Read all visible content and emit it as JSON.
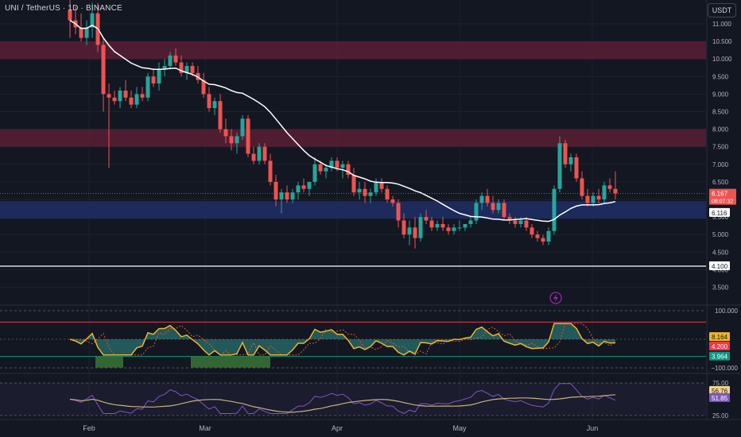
{
  "header": {
    "symbol_title": "UNI / TetherUS · 1D · BINANCE",
    "currency_button": "USDT"
  },
  "colors": {
    "background": "#131722",
    "candle_up": "#26a69a",
    "candle_down": "#ef5350",
    "ma_line": "#ffffff",
    "resistance_zone": "#5a1f35",
    "support_zone": "#1e2c63",
    "osc_fast": "#f0b429",
    "osc_slow": "#e0572b",
    "osc_fill": "#3fd4c4",
    "rsi_line": "#7e57c2",
    "rsi_ma": "#c8b27a",
    "upper_band": "#f23645",
    "lower_band": "#089981"
  },
  "price_axis": {
    "ticks": [
      "11.000",
      "10.500",
      "10.000",
      "9.500",
      "9.000",
      "8.500",
      "8.000",
      "7.500",
      "7.000",
      "6.500",
      "6.000",
      "5.500",
      "5.000",
      "4.500",
      "4.000",
      "3.500"
    ],
    "current_price_label": "6.167",
    "countdown_label": "08:07:32",
    "ma_label": "6.116",
    "hline_label": "4.100"
  },
  "osc_axis": {
    "ticks": [
      "100.000",
      "−100.000"
    ],
    "labels": [
      "8.164",
      "4.200",
      "3.964"
    ]
  },
  "rsi_axis": {
    "ticks": [
      "75.00",
      "25.00"
    ],
    "labels": [
      "56.76",
      "51.85"
    ]
  },
  "time_axis": {
    "labels": [
      "Feb",
      "Mar",
      "Apr",
      "May",
      "Jun"
    ]
  },
  "chart_data": {
    "type": "candlestick",
    "title": "UNI / TetherUS · 1D · BINANCE",
    "ylim": [
      3.2,
      11.35
    ],
    "resistance_zones": [
      [
        10.0,
        10.5
      ],
      [
        7.5,
        8.0
      ]
    ],
    "support_zone": [
      5.45,
      5.95
    ],
    "horizontal_line": 4.1,
    "moving_average_last": 6.116,
    "last_price": 6.167,
    "candles": [
      [
        11.4,
        11.8,
        10.6,
        11.1
      ],
      [
        11.1,
        11.5,
        10.7,
        10.9
      ],
      [
        10.9,
        11.3,
        10.5,
        10.6
      ],
      [
        10.6,
        11.1,
        10.4,
        10.9
      ],
      [
        10.9,
        11.6,
        10.6,
        11.3
      ],
      [
        11.3,
        11.6,
        10.2,
        10.4
      ],
      [
        10.4,
        10.6,
        8.5,
        9.0
      ],
      [
        9.0,
        9.3,
        6.9,
        8.9
      ],
      [
        8.9,
        9.1,
        8.7,
        8.8
      ],
      [
        8.8,
        9.2,
        8.6,
        9.1
      ],
      [
        9.1,
        9.4,
        8.8,
        8.9
      ],
      [
        8.9,
        9.1,
        8.6,
        8.7
      ],
      [
        8.7,
        9.2,
        8.6,
        9.0
      ],
      [
        9.0,
        9.2,
        8.8,
        8.9
      ],
      [
        8.9,
        9.6,
        8.8,
        9.5
      ],
      [
        9.5,
        9.7,
        9.2,
        9.3
      ],
      [
        9.3,
        9.9,
        9.1,
        9.7
      ],
      [
        9.7,
        10.0,
        9.5,
        9.8
      ],
      [
        9.8,
        10.2,
        9.7,
        10.1
      ],
      [
        10.1,
        10.3,
        9.8,
        9.9
      ],
      [
        9.9,
        10.1,
        9.5,
        9.6
      ],
      [
        9.6,
        9.9,
        9.4,
        9.8
      ],
      [
        9.8,
        9.9,
        9.5,
        9.6
      ],
      [
        9.6,
        9.8,
        9.3,
        9.4
      ],
      [
        9.4,
        9.6,
        8.9,
        9.0
      ],
      [
        9.0,
        9.2,
        8.5,
        8.6
      ],
      [
        8.6,
        8.9,
        8.4,
        8.8
      ],
      [
        8.8,
        9.0,
        7.9,
        8.0
      ],
      [
        8.0,
        8.3,
        7.6,
        7.8
      ],
      [
        7.8,
        8.0,
        7.4,
        7.6
      ],
      [
        7.6,
        7.9,
        7.3,
        7.8
      ],
      [
        7.8,
        8.4,
        7.7,
        8.3
      ],
      [
        8.3,
        8.4,
        7.2,
        7.3
      ],
      [
        7.3,
        7.5,
        7.0,
        7.1
      ],
      [
        7.1,
        7.6,
        7.0,
        7.5
      ],
      [
        7.5,
        7.6,
        7.0,
        7.1
      ],
      [
        7.1,
        7.3,
        6.4,
        6.5
      ],
      [
        6.5,
        6.7,
        5.8,
        6.0
      ],
      [
        6.0,
        6.3,
        5.6,
        6.2
      ],
      [
        6.2,
        6.4,
        5.9,
        6.0
      ],
      [
        6.0,
        6.3,
        5.9,
        6.2
      ],
      [
        6.2,
        6.5,
        6.0,
        6.4
      ],
      [
        6.4,
        6.6,
        6.2,
        6.3
      ],
      [
        6.3,
        6.5,
        6.1,
        6.5
      ],
      [
        6.5,
        7.2,
        6.4,
        7.0
      ],
      [
        7.0,
        7.1,
        6.7,
        6.8
      ],
      [
        6.8,
        7.0,
        6.6,
        6.9
      ],
      [
        6.9,
        7.2,
        6.8,
        7.1
      ],
      [
        7.1,
        7.2,
        6.8,
        6.9
      ],
      [
        6.9,
        7.1,
        6.6,
        7.0
      ],
      [
        7.0,
        7.1,
        6.6,
        6.7
      ],
      [
        6.7,
        6.9,
        6.1,
        6.2
      ],
      [
        6.2,
        6.5,
        6.0,
        6.3
      ],
      [
        6.3,
        6.5,
        5.9,
        6.1
      ],
      [
        6.1,
        6.3,
        5.9,
        6.2
      ],
      [
        6.2,
        6.6,
        6.1,
        6.5
      ],
      [
        6.5,
        6.6,
        6.2,
        6.3
      ],
      [
        6.3,
        6.4,
        5.9,
        6.0
      ],
      [
        6.0,
        6.1,
        5.8,
        5.9
      ],
      [
        5.9,
        6.0,
        5.2,
        5.4
      ],
      [
        5.4,
        5.6,
        4.9,
        5.0
      ],
      [
        5.0,
        5.4,
        4.7,
        5.2
      ],
      [
        5.2,
        5.5,
        4.6,
        4.9
      ],
      [
        4.9,
        5.6,
        4.8,
        5.5
      ],
      [
        5.5,
        5.7,
        5.3,
        5.4
      ],
      [
        5.4,
        5.5,
        5.1,
        5.2
      ],
      [
        5.2,
        5.4,
        5.1,
        5.3
      ],
      [
        5.3,
        5.5,
        5.1,
        5.2
      ],
      [
        5.2,
        5.3,
        5.0,
        5.1
      ],
      [
        5.1,
        5.3,
        5.0,
        5.2
      ],
      [
        5.2,
        5.4,
        5.1,
        5.2
      ],
      [
        5.2,
        5.3,
        5.1,
        5.3
      ],
      [
        5.3,
        5.5,
        5.2,
        5.4
      ],
      [
        5.4,
        6.0,
        5.3,
        5.9
      ],
      [
        5.9,
        6.2,
        5.7,
        6.1
      ],
      [
        6.1,
        6.3,
        5.8,
        5.9
      ],
      [
        5.9,
        6.1,
        5.6,
        5.7
      ],
      [
        5.7,
        6.0,
        5.6,
        5.9
      ],
      [
        5.9,
        6.0,
        5.4,
        5.5
      ],
      [
        5.5,
        5.6,
        5.3,
        5.4
      ],
      [
        5.4,
        5.5,
        5.2,
        5.3
      ],
      [
        5.3,
        5.5,
        5.2,
        5.4
      ],
      [
        5.4,
        5.5,
        5.1,
        5.2
      ],
      [
        5.2,
        5.3,
        4.9,
        5.0
      ],
      [
        5.0,
        5.1,
        4.8,
        4.9
      ],
      [
        4.9,
        5.0,
        4.7,
        4.8
      ],
      [
        4.8,
        5.2,
        4.7,
        5.1
      ],
      [
        5.1,
        6.4,
        5.0,
        6.3
      ],
      [
        6.3,
        7.8,
        6.2,
        7.6
      ],
      [
        7.6,
        7.7,
        6.9,
        7.0
      ],
      [
        7.0,
        7.3,
        6.8,
        7.2
      ],
      [
        7.2,
        7.3,
        6.5,
        6.6
      ],
      [
        6.6,
        6.8,
        6.0,
        6.1
      ],
      [
        6.1,
        6.3,
        5.8,
        5.9
      ],
      [
        5.9,
        6.2,
        5.8,
        6.1
      ],
      [
        6.1,
        6.3,
        5.9,
        6.0
      ],
      [
        6.0,
        6.5,
        5.9,
        6.4
      ],
      [
        6.4,
        6.6,
        6.2,
        6.3
      ],
      [
        6.3,
        6.8,
        6.0,
        6.17
      ]
    ],
    "time_labels": [
      "Feb",
      "Mar",
      "Apr",
      "May",
      "Jun"
    ],
    "oscillator": {
      "range": [
        -100,
        100
      ],
      "upper_line": 60,
      "lower_line": -60,
      "last_values": [
        8.164,
        4.2,
        3.964
      ]
    },
    "rsi": {
      "range": [
        25,
        75
      ],
      "last_values": [
        56.76,
        51.85
      ]
    }
  }
}
